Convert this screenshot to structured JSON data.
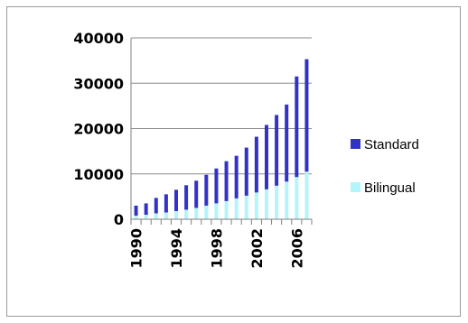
{
  "chart_data": {
    "type": "bar",
    "stacked": true,
    "title": "",
    "xlabel": "",
    "ylabel": "",
    "ylim": [
      0,
      40000
    ],
    "yticks": [
      0,
      10000,
      20000,
      30000,
      40000
    ],
    "grid": true,
    "legend_position": "right",
    "categories": [
      "1990",
      "1991",
      "1992",
      "1993",
      "1994",
      "1995",
      "1996",
      "1997",
      "1998",
      "1999",
      "2000",
      "2001",
      "2002",
      "2003",
      "2004",
      "2005",
      "2006",
      "2007"
    ],
    "x_tick_labels": [
      "1990",
      "1994",
      "1998",
      "2002",
      "2006"
    ],
    "series": [
      {
        "name": "Bilingual",
        "color": "#b3f5fb",
        "values": [
          800,
          1000,
          1300,
          1500,
          1800,
          2100,
          2500,
          3000,
          3500,
          4000,
          4600,
          5200,
          5900,
          6600,
          7400,
          8300,
          9300,
          10500
        ]
      },
      {
        "name": "Standard",
        "color": "#3232c8",
        "values": [
          2200,
          2500,
          3400,
          4000,
          4700,
          5400,
          6000,
          6800,
          7700,
          8800,
          9400,
          10600,
          12300,
          14200,
          15600,
          17000,
          22200,
          24800
        ]
      }
    ]
  }
}
